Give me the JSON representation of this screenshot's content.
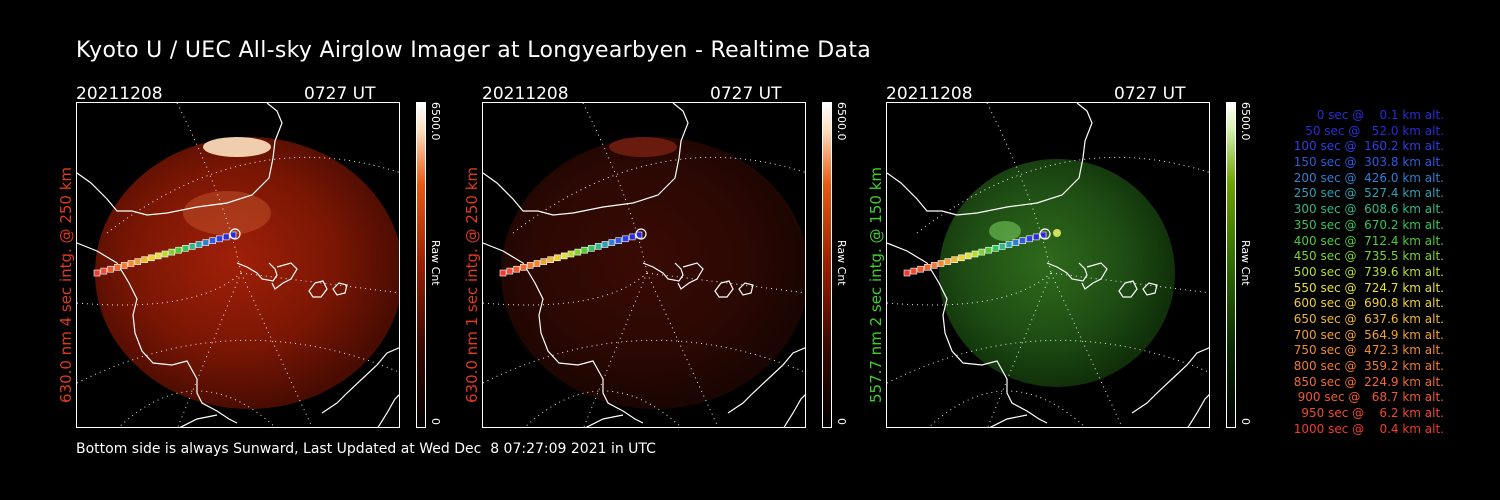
{
  "title": "Kyoto U / UEC All-sky Airglow Imager at Longyearbyen - Realtime Data",
  "footer": "Bottom side is always Sunward, Last Updated at Wed Dec  8 07:27:09 2021 in UTC",
  "panels": [
    {
      "date": "20211208",
      "time": "0727 UT",
      "ylabel": "630.0 nm 4 sec intg. @ 250 km",
      "label_color": "#e03a1e",
      "cbar_max": "6500.0",
      "cbar_min": "0",
      "cbar_label": "Raw Cnt",
      "palette": "red",
      "intensity": 1.0
    },
    {
      "date": "20211208",
      "time": "0727 UT",
      "ylabel": "630.0 nm 1 sec intg. @ 250 km",
      "label_color": "#e03a1e",
      "cbar_max": "6500.0",
      "cbar_min": "0",
      "cbar_label": "Raw Cnt",
      "palette": "red",
      "intensity": 0.35
    },
    {
      "date": "20211208",
      "time": "0727 UT",
      "ylabel": "557.7 nm 2 sec intg. @ 150 km",
      "label_color": "#3fcf2a",
      "cbar_max": "6500.0",
      "cbar_min": "0",
      "cbar_label": "Raw Cnt",
      "palette": "green",
      "intensity": 0.6
    }
  ],
  "legend": [
    {
      "text": "0 sec @    0.1 km alt.",
      "color": "#2b2bd8"
    },
    {
      "text": "50 sec @   52.0 km alt.",
      "color": "#2b2bd8"
    },
    {
      "text": "100 sec @  160.2 km alt.",
      "color": "#2e3ee0"
    },
    {
      "text": "150 sec @  303.8 km alt.",
      "color": "#2f5ae0"
    },
    {
      "text": "200 sec @  426.0 km alt.",
      "color": "#2f7fd6"
    },
    {
      "text": "250 sec @  527.4 km alt.",
      "color": "#2fa0b4"
    },
    {
      "text": "300 sec @  608.6 km alt.",
      "color": "#2fb88a"
    },
    {
      "text": "350 sec @  670.2 km alt.",
      "color": "#34c45a"
    },
    {
      "text": "400 sec @  712.4 km alt.",
      "color": "#4ccc34"
    },
    {
      "text": "450 sec @  735.5 km alt.",
      "color": "#7cd42c"
    },
    {
      "text": "500 sec @  739.6 km alt.",
      "color": "#b6dc2c"
    },
    {
      "text": "550 sec @  724.7 km alt.",
      "color": "#e6e034"
    },
    {
      "text": "600 sec @  690.8 km alt.",
      "color": "#f0d030"
    },
    {
      "text": "650 sec @  637.6 km alt.",
      "color": "#f0b830"
    },
    {
      "text": "700 sec @  564.9 km alt.",
      "color": "#f0a030"
    },
    {
      "text": "750 sec @  472.3 km alt.",
      "color": "#f08a30"
    },
    {
      "text": "800 sec @  359.2 km alt.",
      "color": "#f07a30"
    },
    {
      "text": "850 sec @  224.9 km alt.",
      "color": "#f06a30"
    },
    {
      "text": "900 sec @   68.7 km alt.",
      "color": "#f05a30"
    },
    {
      "text": "950 sec @    6.2 km alt.",
      "color": "#f04a30"
    },
    {
      "text": "1000 sec @    0.4 km alt.",
      "color": "#f03a30"
    }
  ]
}
